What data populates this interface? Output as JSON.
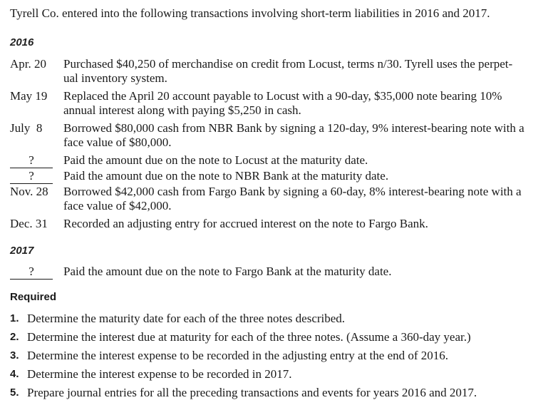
{
  "intro": "Tyrell Co. entered into the following transactions involving short-term liabilities in 2016 and 2017.",
  "year_2016": "2016",
  "year_2017": "2017",
  "transactions_2016": [
    {
      "date": "Apr. 20",
      "lines": [
        "Purchased $40,250 of merchandise on credit from Locust, terms n/30. Tyrell uses the perpet-",
        "ual inventory system."
      ]
    },
    {
      "date": "May 19",
      "lines": [
        "Replaced the April 20 account payable to Locust with a 90-day, $35,000 note bearing 10%",
        "annual interest along with paying $5,250 in cash."
      ]
    },
    {
      "date": "July  8",
      "lines": [
        "Borrowed $80,000 cash from NBR Bank by signing a 120-day, 9% interest-bearing note with a",
        "face value of $80,000."
      ]
    },
    {
      "date": "?",
      "lines": [
        "Paid the amount due on the note to Locust at the maturity date."
      ]
    },
    {
      "date": "?",
      "lines": [
        "Paid the amount due on the note to NBR Bank at the maturity date."
      ]
    },
    {
      "date": "Nov. 28",
      "lines": [
        "Borrowed $42,000 cash from Fargo Bank by signing a 60-day, 8% interest-bearing note with a",
        "face value of $42,000."
      ]
    },
    {
      "date": "Dec. 31",
      "lines": [
        "Recorded an adjusting entry for accrued interest on the note to Fargo Bank."
      ]
    }
  ],
  "transactions_2017": [
    {
      "date": "?",
      "lines": [
        "Paid the amount due on the note to Fargo Bank at the maturity date."
      ]
    }
  ],
  "required_heading": "Required",
  "required_items": [
    {
      "num": "1.",
      "text": "Determine the maturity date for each of the three notes described."
    },
    {
      "num": "2.",
      "text": "Determine the interest due at maturity for each of the three notes. (Assume a 360-day year.)"
    },
    {
      "num": "3.",
      "text": "Determine the interest expense to be recorded in the adjusting entry at the end of 2016."
    },
    {
      "num": "4.",
      "text": "Determine the interest expense to be recorded in 2017."
    },
    {
      "num": "5.",
      "text": "Prepare journal entries for all the preceding transactions and events for years 2016 and 2017."
    }
  ]
}
